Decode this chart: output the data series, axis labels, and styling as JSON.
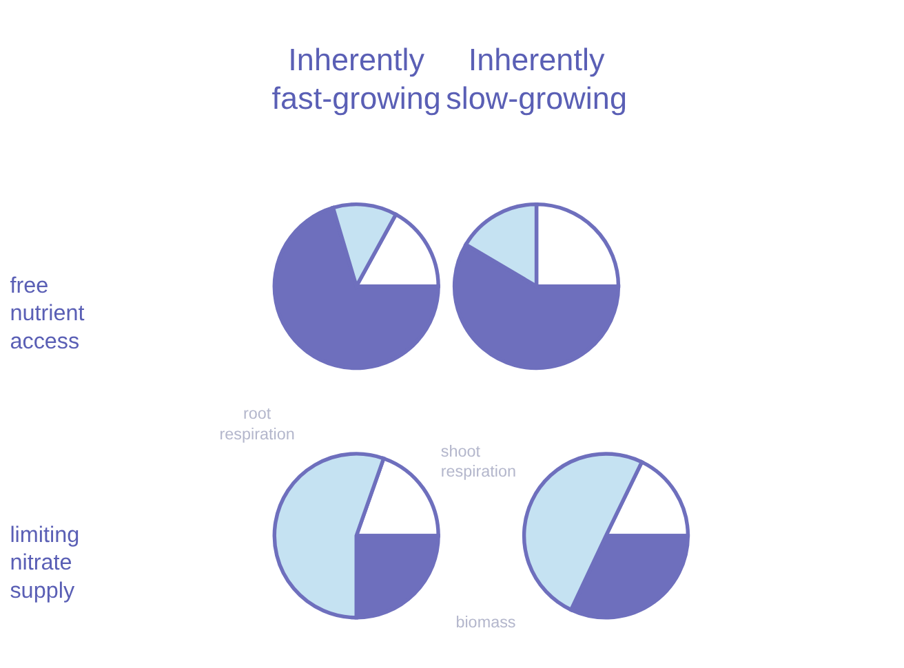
{
  "chart_data": [
    {
      "type": "pie",
      "title": "Inherently fast-growing",
      "ylabel": "free nutrient access",
      "categories": [
        null,
        null,
        null
      ],
      "values": [
        17,
        70.4,
        12.6
      ],
      "colors": [
        "#ffffff",
        "#6e6fbd",
        "#c5e2f2"
      ]
    },
    {
      "type": "pie",
      "title": "Inherently slow-growing",
      "categories": [
        null,
        null,
        null
      ],
      "values": [
        25,
        58.5,
        16.5
      ],
      "colors": [
        "#ffffff",
        "#6e6fbd",
        "#c5e2f2"
      ]
    },
    {
      "type": "pie",
      "ylabel": "limiting nitrate supply",
      "categories": [
        "shoot respiration",
        "biomass",
        "root respiration"
      ],
      "values": [
        19.6,
        25,
        55.4
      ],
      "colors": [
        "#ffffff",
        "#6e6fbd",
        "#c5e2f2"
      ]
    },
    {
      "type": "pie",
      "categories": [
        null,
        null,
        null
      ],
      "values": [
        17.8,
        32,
        50.2
      ],
      "colors": [
        "#ffffff",
        "#6e6fbd",
        "#c5e2f2"
      ]
    }
  ]
}
